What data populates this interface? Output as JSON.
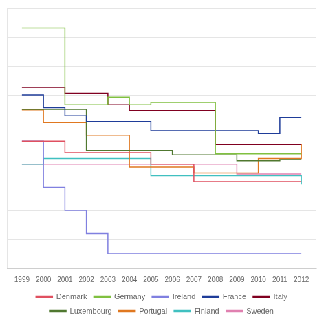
{
  "chart_data": {
    "type": "line",
    "line_style": "steps-post",
    "x": [
      1999,
      2000,
      2001,
      2002,
      2003,
      2004,
      2005,
      2006,
      2007,
      2008,
      2009,
      2010,
      2011,
      2012
    ],
    "series": [
      {
        "name": "Denmark",
        "color": "#e05060",
        "values": [
          32,
          32,
          30,
          30,
          30,
          30,
          28,
          28,
          25,
          25,
          25,
          25,
          25,
          25
        ]
      },
      {
        "name": "Germany",
        "color": "#80c040",
        "values": [
          51.6,
          51.6,
          38.3,
          38.3,
          39.6,
          38.3,
          38.7,
          38.7,
          38.7,
          29.8,
          29.8,
          29.8,
          29.8,
          29.8
        ]
      },
      {
        "name": "Ireland",
        "color": "#8080e0",
        "values": [
          32,
          24,
          20,
          16,
          12.5,
          12.5,
          12.5,
          12.5,
          12.5,
          12.5,
          12.5,
          12.5,
          12.5,
          12.5
        ]
      },
      {
        "name": "France",
        "color": "#1f3d99",
        "values": [
          40,
          37.8,
          36.4,
          35.4,
          35.4,
          35.4,
          33.8,
          33.8,
          33.8,
          33.8,
          33.8,
          33.3,
          36.1,
          36.1
        ]
      },
      {
        "name": "Italy",
        "color": "#800020",
        "values": [
          41.3,
          41.3,
          40.3,
          40.3,
          38.3,
          37.3,
          37.3,
          37.3,
          37.3,
          31.4,
          31.4,
          31.4,
          31.4,
          31.4
        ]
      },
      {
        "name": "Luxembourg",
        "color": "#507830",
        "values": [
          37.5,
          37.5,
          37.5,
          30.4,
          30.4,
          30.4,
          30.4,
          29.6,
          29.6,
          29.6,
          28.6,
          28.6,
          28.8,
          28.8
        ]
      },
      {
        "name": "Portugal",
        "color": "#e07820",
        "values": [
          37.4,
          35.2,
          35.2,
          33,
          33,
          27.5,
          27.5,
          27.5,
          26.5,
          26.5,
          26.5,
          29,
          29,
          31.5
        ]
      },
      {
        "name": "Finland",
        "color": "#40c0c0",
        "values": [
          28,
          29,
          29,
          29,
          29,
          29,
          26,
          26,
          26,
          26,
          26,
          26,
          26,
          24.5
        ]
      },
      {
        "name": "Sweden",
        "color": "#e080b0",
        "values": [
          28,
          28,
          28,
          28,
          28,
          28,
          28,
          28,
          28,
          28,
          26.3,
          26.3,
          26.3,
          26.3
        ]
      }
    ],
    "xlim": [
      1998.3,
      2012.7
    ],
    "xticks": [
      1999,
      2000,
      2001,
      2002,
      2003,
      2004,
      2005,
      2006,
      2007,
      2008,
      2009,
      2010,
      2011,
      2012
    ],
    "ylim": [
      10,
      55
    ],
    "yticks": [
      10,
      15,
      20,
      25,
      30,
      35,
      40,
      45,
      50,
      55
    ],
    "grid": true,
    "tick_labels": "x",
    "legend": "bottom"
  }
}
